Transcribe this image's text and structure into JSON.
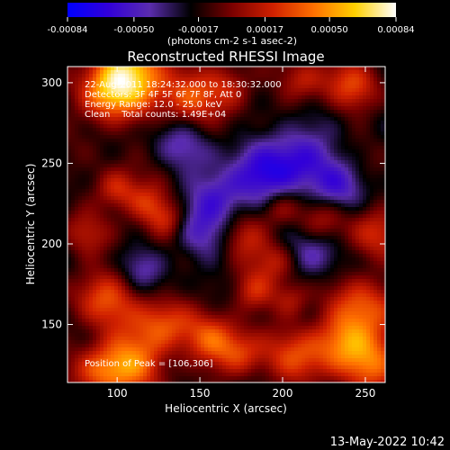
{
  "chart_data": {
    "type": "heatmap",
    "title": "Reconstructed RHESSI Image",
    "xlabel": "Heliocentric X (arcsec)",
    "ylabel": "Heliocentric Y (arcsec)",
    "xlim": [
      70,
      262
    ],
    "ylim": [
      114,
      310
    ],
    "x_ticks": [
      100,
      150,
      200,
      250
    ],
    "y_ticks": [
      150,
      200,
      250,
      300
    ],
    "grid": false,
    "colorbar": {
      "tick_labels": [
        "-0.00084",
        "-0.00050",
        "-0.00017",
        "0.00017",
        "0.00050",
        "0.00084"
      ],
      "range": [
        -0.00084,
        0.00084
      ],
      "unit_label": "(photons cm-2 s-1 asec-2)",
      "colors": [
        "#0000ff",
        "#3200d8",
        "#5a2cae",
        "#000000",
        "#7a0000",
        "#d02000",
        "#ff7000",
        "#ffd000",
        "#ffffff"
      ]
    },
    "annotations": {
      "time_range": "22-Aug-2011 18:24:32.000 to 18:30:32.000",
      "detectors": "Detectors: 3F 4F 5F 6F 7F 8F, Att 0",
      "energy_range": "Energy Range: 12.0 - 25.0 keV",
      "clean_info": "Clean    Total counts: 1.49E+04",
      "peak": "Position of Peak = [106,306]"
    },
    "peak": [
      106,
      306
    ]
  },
  "timestamp": "13-May-2022 10:42"
}
